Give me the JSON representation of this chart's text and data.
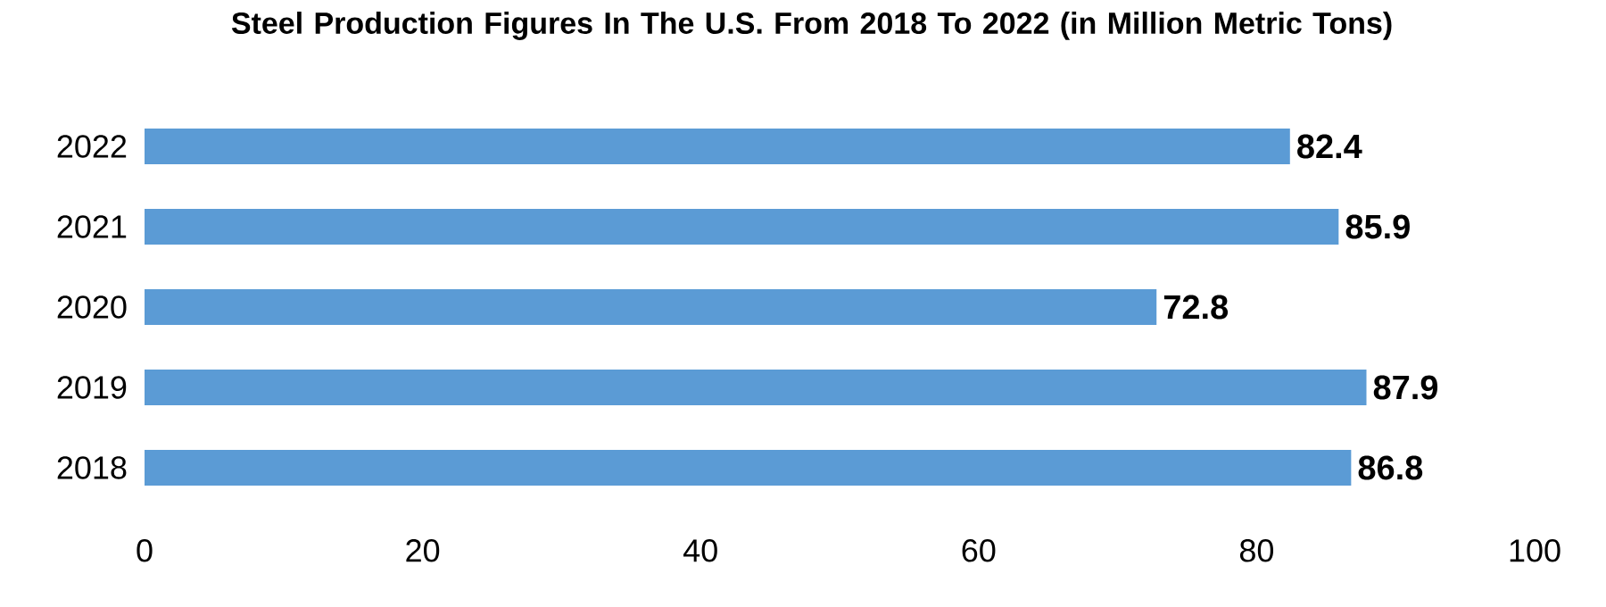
{
  "chart_data": {
    "type": "bar",
    "orientation": "horizontal",
    "title": "Steel Production Figures In The U.S. From 2018 To 2022 (in Million Metric Tons)",
    "categories": [
      "2022",
      "2021",
      "2020",
      "2019",
      "2018"
    ],
    "values": [
      82.4,
      85.9,
      72.8,
      87.9,
      86.8
    ],
    "color": "#5b9bd5",
    "xlim": [
      0,
      100
    ],
    "xticks": [
      0,
      20,
      40,
      60,
      80,
      100
    ],
    "data_labels": true
  }
}
